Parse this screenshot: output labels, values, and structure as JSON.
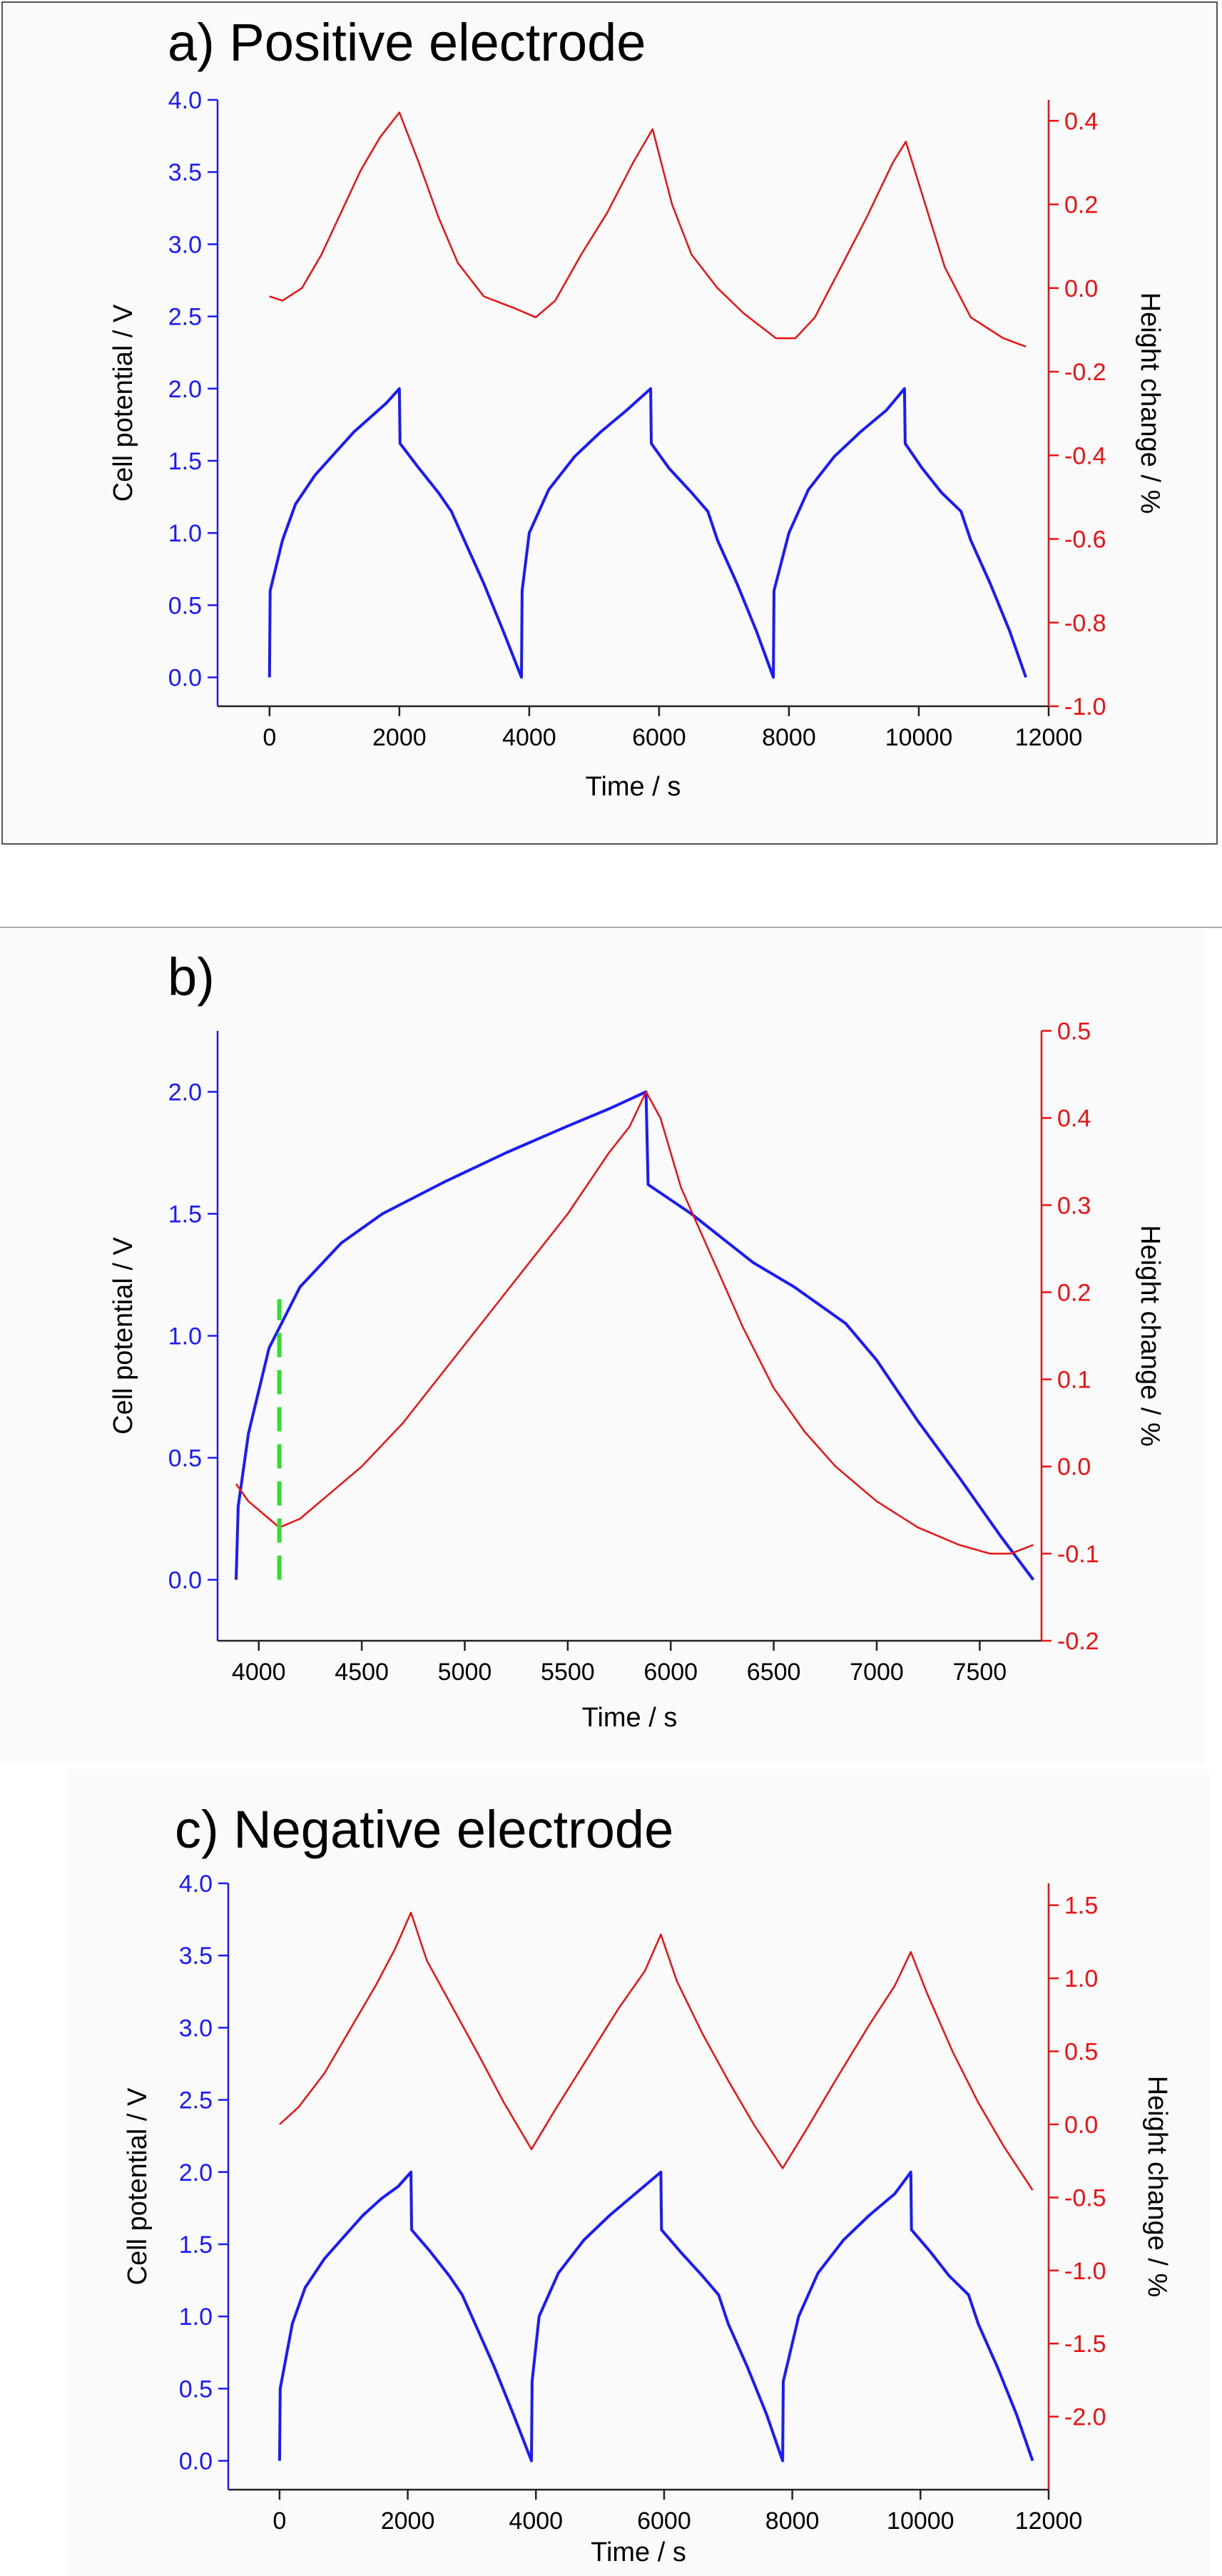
{
  "colors": {
    "potential": "#1a1aff",
    "height": "#ee1111",
    "marker": "#33dd33",
    "panel_bg": "#fafafa",
    "axis": "#222222"
  },
  "chart_data": [
    {
      "type": "line",
      "title": "a) Positive electrode",
      "xlabel": "Time / s",
      "ylabel": "Cell potential / V",
      "y2label": "Height change / %",
      "xlim": [
        -800,
        12000
      ],
      "ylim": [
        -0.2,
        4.0
      ],
      "y2lim": [
        -1.0,
        0.45
      ],
      "xticks": [
        0,
        2000,
        4000,
        6000,
        8000,
        10000,
        12000
      ],
      "yticks": [
        0.0,
        0.5,
        1.0,
        1.5,
        2.0,
        2.5,
        3.0,
        3.5,
        4.0
      ],
      "y2ticks": [
        -1.0,
        -0.8,
        -0.6,
        -0.4,
        -0.2,
        0.0,
        0.2,
        0.4
      ],
      "x_tick_labels": [
        "0",
        "2000",
        "4000",
        "6000",
        "8000",
        "10000",
        "12000"
      ],
      "y_tick_labels": [
        "0.0",
        "0.5",
        "1.0",
        "1.5",
        "2.0",
        "2.5",
        "3.0",
        "3.5",
        "4.0"
      ],
      "y2_tick_labels": [
        "-1.0",
        "-0.8",
        "-0.6",
        "-0.4",
        "-0.2",
        "0.0",
        "0.2",
        "0.4"
      ],
      "grid": false,
      "series": [
        {
          "axis": "left",
          "x": [
            0,
            10,
            200,
            400,
            700,
            1000,
            1300,
            1600,
            1800,
            2000,
            2010,
            2300,
            2600,
            2800,
            3000,
            3300,
            3600,
            3880,
            3890,
            4000,
            4300,
            4700,
            5100,
            5500,
            5870,
            5880,
            6150,
            6500,
            6750,
            6900,
            7200,
            7500,
            7760,
            7770,
            8000,
            8300,
            8700,
            9100,
            9500,
            9780,
            9790,
            10050,
            10350,
            10650,
            10800,
            11100,
            11400,
            11650
          ],
          "y": [
            0.0,
            0.6,
            0.95,
            1.2,
            1.4,
            1.55,
            1.7,
            1.82,
            1.9,
            2.0,
            1.62,
            1.45,
            1.28,
            1.15,
            0.95,
            0.65,
            0.32,
            0.0,
            0.6,
            1.0,
            1.3,
            1.53,
            1.7,
            1.85,
            2.0,
            1.62,
            1.45,
            1.28,
            1.15,
            0.95,
            0.65,
            0.32,
            0.0,
            0.6,
            1.0,
            1.3,
            1.53,
            1.7,
            1.85,
            2.0,
            1.62,
            1.45,
            1.28,
            1.15,
            0.95,
            0.65,
            0.32,
            0.0
          ]
        },
        {
          "axis": "right",
          "x": [
            0,
            200,
            500,
            800,
            1100,
            1400,
            1700,
            2000,
            2300,
            2600,
            2900,
            3300,
            3800,
            4100,
            4400,
            4800,
            5200,
            5600,
            5900,
            6200,
            6500,
            6900,
            7300,
            7800,
            8100,
            8400,
            8800,
            9200,
            9600,
            9800,
            10100,
            10400,
            10800,
            11300,
            11650
          ],
          "y": [
            -0.02,
            -0.03,
            0.0,
            0.08,
            0.18,
            0.28,
            0.36,
            0.42,
            0.3,
            0.17,
            0.06,
            -0.02,
            -0.05,
            -0.07,
            -0.03,
            0.08,
            0.18,
            0.3,
            0.38,
            0.2,
            0.08,
            0.0,
            -0.06,
            -0.12,
            -0.12,
            -0.07,
            0.05,
            0.17,
            0.3,
            0.35,
            0.2,
            0.05,
            -0.07,
            -0.12,
            -0.14
          ]
        }
      ]
    },
    {
      "type": "line",
      "title": "b)",
      "xlabel": "Time / s",
      "ylabel": "Cell potential / V",
      "y2label": "Height change / %",
      "xlim": [
        3800,
        7800
      ],
      "ylim": [
        -0.25,
        2.25
      ],
      "y2lim": [
        -0.2,
        0.5
      ],
      "xticks": [
        4000,
        4500,
        5000,
        5500,
        6000,
        6500,
        7000,
        7500
      ],
      "yticks": [
        0.0,
        0.5,
        1.0,
        1.5,
        2.0
      ],
      "y2ticks": [
        -0.2,
        -0.1,
        0.0,
        0.1,
        0.2,
        0.3,
        0.4,
        0.5
      ],
      "x_tick_labels": [
        "4000",
        "4500",
        "5000",
        "5500",
        "6000",
        "6500",
        "7000",
        "7500"
      ],
      "y_tick_labels": [
        "0.0",
        "0.5",
        "1.0",
        "1.5",
        "2.0"
      ],
      "y2_tick_labels": [
        "-0.2",
        "-0.1",
        "0.0",
        "0.1",
        "0.2",
        "0.3",
        "0.4",
        "0.5"
      ],
      "grid": false,
      "marker_x": 4100,
      "marker_y_range": [
        0.0,
        1.15
      ],
      "series": [
        {
          "axis": "left",
          "x": [
            3890,
            3900,
            3950,
            4050,
            4200,
            4400,
            4600,
            4900,
            5200,
            5500,
            5700,
            5880,
            5890,
            6100,
            6400,
            6600,
            6850,
            7000,
            7200,
            7400,
            7600,
            7760
          ],
          "y": [
            0.0,
            0.3,
            0.6,
            0.95,
            1.2,
            1.38,
            1.5,
            1.63,
            1.75,
            1.86,
            1.93,
            2.0,
            1.62,
            1.5,
            1.3,
            1.2,
            1.05,
            0.9,
            0.65,
            0.42,
            0.18,
            0.0
          ]
        },
        {
          "axis": "right",
          "x": [
            3890,
            3950,
            4050,
            4100,
            4200,
            4300,
            4500,
            4700,
            4900,
            5100,
            5300,
            5500,
            5700,
            5800,
            5880,
            5950,
            6050,
            6200,
            6350,
            6500,
            6650,
            6800,
            7000,
            7200,
            7400,
            7550,
            7650,
            7760
          ],
          "y": [
            -0.02,
            -0.04,
            -0.06,
            -0.07,
            -0.06,
            -0.04,
            0.0,
            0.05,
            0.11,
            0.17,
            0.23,
            0.29,
            0.36,
            0.39,
            0.43,
            0.4,
            0.32,
            0.24,
            0.16,
            0.09,
            0.04,
            0.0,
            -0.04,
            -0.07,
            -0.09,
            -0.1,
            -0.1,
            -0.09
          ]
        }
      ]
    },
    {
      "type": "line",
      "title": "c) Negative electrode",
      "xlabel": "Time / s",
      "ylabel": "Cell potential / V",
      "y2label": "Height change / %",
      "xlim": [
        -800,
        12000
      ],
      "ylim": [
        -0.2,
        4.0
      ],
      "y2lim": [
        -2.5,
        1.65
      ],
      "xticks": [
        0,
        2000,
        4000,
        6000,
        8000,
        10000,
        12000
      ],
      "yticks": [
        0.0,
        0.5,
        1.0,
        1.5,
        2.0,
        2.5,
        3.0,
        3.5,
        4.0
      ],
      "y2ticks": [
        -2.0,
        -1.5,
        -1.0,
        -0.5,
        0.0,
        0.5,
        1.0,
        1.5
      ],
      "x_tick_labels": [
        "0",
        "2000",
        "4000",
        "6000",
        "8000",
        "10000",
        "12000"
      ],
      "y_tick_labels": [
        "0.0",
        "0.5",
        "1.0",
        "1.5",
        "2.0",
        "2.5",
        "3.0",
        "3.5",
        "4.0"
      ],
      "y2_tick_labels": [
        "-2.0",
        "-1.5",
        "-1.0",
        "-0.5",
        "0.0",
        "0.5",
        "1.0",
        "1.5"
      ],
      "grid": false,
      "series": [
        {
          "axis": "left",
          "x": [
            0,
            10,
            200,
            400,
            700,
            1000,
            1300,
            1600,
            1850,
            2050,
            2060,
            2350,
            2650,
            2850,
            3050,
            3350,
            3650,
            3930,
            3940,
            4050,
            4350,
            4750,
            5150,
            5550,
            5950,
            5960,
            6250,
            6600,
            6850,
            7000,
            7300,
            7600,
            7850,
            7860,
            8100,
            8400,
            8800,
            9200,
            9600,
            9850,
            9860,
            10150,
            10450,
            10750,
            10900,
            11200,
            11500,
            11750
          ],
          "y": [
            0.0,
            0.5,
            0.95,
            1.2,
            1.4,
            1.55,
            1.7,
            1.82,
            1.9,
            2.0,
            1.6,
            1.45,
            1.28,
            1.15,
            0.95,
            0.65,
            0.32,
            0.0,
            0.55,
            1.0,
            1.3,
            1.53,
            1.7,
            1.85,
            2.0,
            1.6,
            1.45,
            1.28,
            1.15,
            0.95,
            0.65,
            0.32,
            0.0,
            0.55,
            1.0,
            1.3,
            1.53,
            1.7,
            1.85,
            2.0,
            1.6,
            1.45,
            1.28,
            1.15,
            0.95,
            0.65,
            0.32,
            0.0
          ]
        },
        {
          "axis": "right",
          "x": [
            0,
            300,
            700,
            1100,
            1500,
            1800,
            2050,
            2300,
            2700,
            3100,
            3500,
            3930,
            4300,
            4800,
            5300,
            5700,
            5950,
            6200,
            6600,
            7000,
            7400,
            7850,
            8200,
            8700,
            9200,
            9600,
            9850,
            10100,
            10500,
            10900,
            11300,
            11750
          ],
          "y": [
            0.0,
            0.12,
            0.35,
            0.65,
            0.95,
            1.2,
            1.45,
            1.12,
            0.8,
            0.48,
            0.15,
            -0.17,
            0.1,
            0.45,
            0.8,
            1.05,
            1.3,
            0.98,
            0.62,
            0.3,
            0.0,
            -0.3,
            -0.05,
            0.32,
            0.68,
            0.95,
            1.18,
            0.9,
            0.5,
            0.15,
            -0.15,
            -0.45
          ]
        }
      ]
    }
  ]
}
